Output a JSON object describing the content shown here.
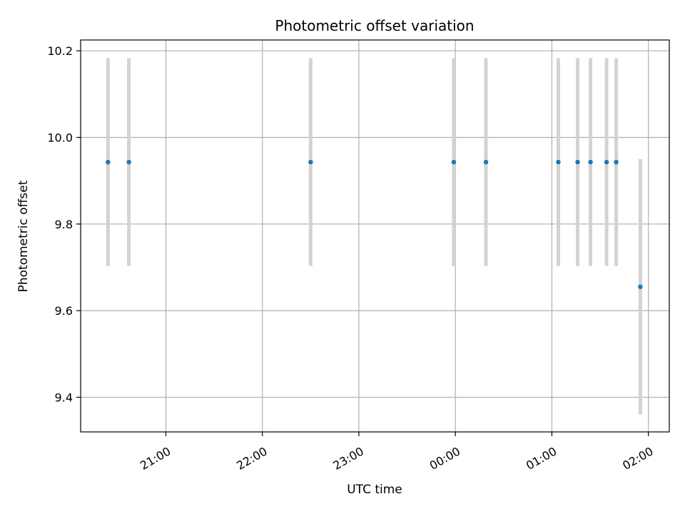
{
  "chart_data": {
    "type": "scatter",
    "title": "Photometric offset variation",
    "xlabel": "UTC time",
    "ylabel": "Photometric offset",
    "x_ticks": [
      {
        "label": "21:00",
        "t": "21:00"
      },
      {
        "label": "22:00",
        "t": "22:00"
      },
      {
        "label": "23:00",
        "t": "23:00"
      },
      {
        "label": "00:00",
        "t": "24:00"
      },
      {
        "label": "01:00",
        "t": "25:00"
      },
      {
        "label": "02:00",
        "t": "26:00"
      }
    ],
    "y_ticks": [
      9.4,
      9.6,
      9.8,
      10.0,
      10.2
    ],
    "xlim": [
      "20:07",
      "26:13"
    ],
    "ylim": [
      9.32,
      10.225
    ],
    "grid": true,
    "legend": "none",
    "colors": {
      "marker": "#1f77b4",
      "errorbar": "#d3d3d3",
      "grid": "#b0b0b0"
    },
    "points": [
      {
        "t": "20:24",
        "y": 9.943,
        "err": 0.24
      },
      {
        "t": "20:37",
        "y": 9.943,
        "err": 0.24
      },
      {
        "t": "22:30",
        "y": 9.943,
        "err": 0.24
      },
      {
        "t": "23:59",
        "y": 9.943,
        "err": 0.24
      },
      {
        "t": "24:19",
        "y": 9.943,
        "err": 0.24
      },
      {
        "t": "25:04",
        "y": 9.943,
        "err": 0.24
      },
      {
        "t": "25:16",
        "y": 9.943,
        "err": 0.24
      },
      {
        "t": "25:24",
        "y": 9.943,
        "err": 0.24
      },
      {
        "t": "25:34",
        "y": 9.943,
        "err": 0.24
      },
      {
        "t": "25:40",
        "y": 9.943,
        "err": 0.24
      },
      {
        "t": "25:55",
        "y": 9.655,
        "err": 0.295
      }
    ]
  }
}
